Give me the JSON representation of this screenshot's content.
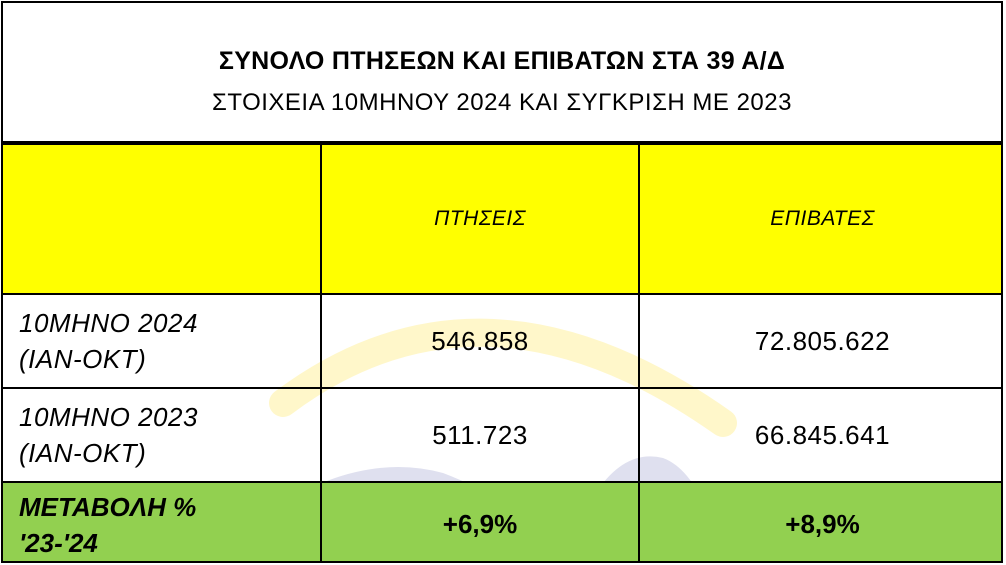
{
  "title": "ΣΥΝΟΛΟ ΠΤΗΣΕΩΝ ΚΑΙ ΕΠΙΒΑΤΩΝ ΣΤΑ 39 Α/Δ",
  "subtitle": "ΣΤΟΙΧΕΙΑ 10ΜΗΝΟΥ 2024 ΚΑΙ ΣΥΓΚΡΙΣΗ ΜΕ 2023",
  "columns": {
    "flights": "ΠΤΗΣΕΙΣ",
    "passengers": "ΕΠΙΒΑΤΕΣ"
  },
  "rows": [
    {
      "label_line1": "10ΜΗΝΟ 2024",
      "label_line2": "(ΙΑΝ-ΟΚΤ)",
      "flights": "546.858",
      "passengers": "72.805.622"
    },
    {
      "label_line1": "10ΜΗΝΟ 2023",
      "label_line2": "(ΙΑΝ-ΟΚΤ)",
      "flights": "511.723",
      "passengers": "66.845.641"
    }
  ],
  "change": {
    "label_line1": "ΜΕΤΑΒΟΛΗ %",
    "label_line2": "'23-'24",
    "flights": "+6,9%",
    "passengers": "+8,9%"
  },
  "colors": {
    "header_bg": "#ffff00",
    "change_bg": "#92d050",
    "watermark_yellow": "#fff3b0",
    "watermark_blue": "#d6d8ec"
  }
}
